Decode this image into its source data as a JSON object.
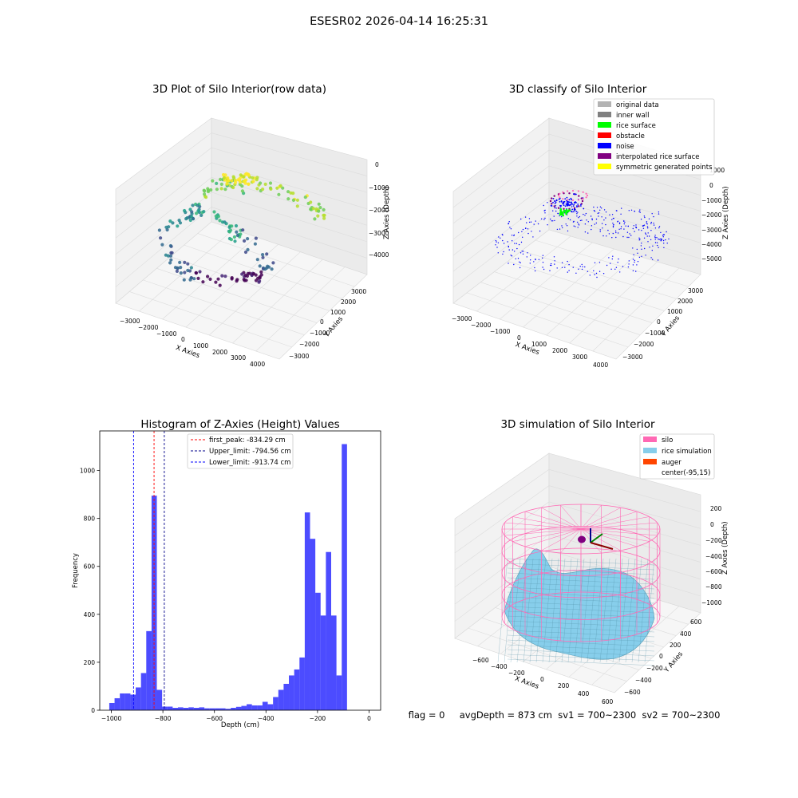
{
  "figure": {
    "suptitle": "ESESR02 2026-04-14 16:25:31",
    "footer": "flag = 0     avgDepth = 873 cm  sv1 = 700~2300  sv2 = 700~2300"
  },
  "chart_data": [
    {
      "type": "scatter",
      "projection": "3d",
      "title": "3D Plot of Silo Interior(row data)",
      "xlabel": "X Axies",
      "ylabel": "Y Axies",
      "zlabel": "Z Axies (Depth)",
      "xticks": [
        "−3000",
        "−2000",
        "−1000",
        "0",
        "1000",
        "2000",
        "3000",
        "4000"
      ],
      "yticks": [
        "3000",
        "2000",
        "1000",
        "0",
        "−1000",
        "−2000",
        "−3000"
      ],
      "zticks": [
        "0",
        "−1000",
        "−2000",
        "−3000",
        "−4000"
      ],
      "colormap": "viridis",
      "grid": true
    },
    {
      "type": "scatter",
      "projection": "3d",
      "title": "3D classify of Silo Interior",
      "xlabel": "X Axies",
      "ylabel": "Y Axies",
      "zlabel": "Z Axies (Depth)",
      "xticks": [
        "−3000",
        "−2000",
        "−1000",
        "0",
        "1000",
        "2000",
        "3000",
        "4000"
      ],
      "yticks": [
        "3000",
        "2000",
        "1000",
        "0",
        "−1000",
        "−2000",
        "−3000"
      ],
      "zticks": [
        "1000",
        "0",
        "−1000",
        "−2000",
        "−3000",
        "−4000",
        "−5000"
      ],
      "legend": [
        {
          "label": "original data",
          "color": "#b3b3b3"
        },
        {
          "label": "inner wall",
          "color": "#808080"
        },
        {
          "label": "rice surface",
          "color": "#00ff00"
        },
        {
          "label": "obstacle",
          "color": "#ff0000"
        },
        {
          "label": "noise",
          "color": "#0000ff"
        },
        {
          "label": "interpolated rice surface",
          "color": "#800080"
        },
        {
          "label": "symmetric generated points",
          "color": "#ffff00"
        }
      ],
      "legend_position": "top-right",
      "grid": true
    },
    {
      "type": "bar",
      "title": "Histogram of Z-Axies (Height) Values",
      "xlabel": "Depth (cm)",
      "ylabel": "Frequency",
      "xlim": [
        -1045,
        45
      ],
      "ylim": [
        0,
        1165
      ],
      "xticks": [
        -1000,
        -800,
        -600,
        -400,
        -200,
        0
      ],
      "xtick_labels": [
        "−1000",
        "−800",
        "−600",
        "−400",
        "−200",
        "0"
      ],
      "yticks": [
        0,
        200,
        400,
        600,
        800,
        1000
      ],
      "bin_width": 20.5,
      "bin_start": -1008,
      "values": [
        30,
        50,
        70,
        70,
        65,
        95,
        155,
        330,
        895,
        85,
        15,
        15,
        10,
        12,
        10,
        12,
        10,
        12,
        8,
        8,
        8,
        8,
        6,
        10,
        14,
        18,
        25,
        20,
        20,
        35,
        25,
        55,
        85,
        110,
        145,
        170,
        220,
        825,
        715,
        490,
        395,
        660,
        395,
        145,
        1110
      ],
      "bar_color": "#0000ff",
      "vlines": [
        {
          "label": "first_peak: -834.29 cm",
          "x": -834.29,
          "color": "#ff0000"
        },
        {
          "label": "Upper_limit: -794.56 cm",
          "x": -794.56,
          "color": "#00008b"
        },
        {
          "label": "Lower_limit: -913.74 cm",
          "x": -913.74,
          "color": "#0000ff"
        }
      ],
      "legend_position": "top-center"
    },
    {
      "type": "surface",
      "projection": "3d",
      "title": "3D simulation of Silo Interior",
      "xlabel": "X Axies",
      "ylabel": "Y Axies",
      "zlabel": "Z Axies (Depth)",
      "xticks": [
        "−600",
        "−400",
        "−200",
        "0",
        "200",
        "400",
        "600"
      ],
      "yticks": [
        "600",
        "400",
        "200",
        "0",
        "−200",
        "−400",
        "−600"
      ],
      "zticks": [
        "200",
        "0",
        "−200",
        "−400",
        "−600",
        "−800",
        "−1000"
      ],
      "legend": [
        {
          "label": "silo",
          "color": "#ff69b4"
        },
        {
          "label": "rice simulation",
          "color": "#87ceeb"
        },
        {
          "label": "auger",
          "color": "#ff4500"
        },
        {
          "label": "center(-95,15)",
          "color": ""
        }
      ],
      "legend_position": "top-right",
      "grid": true
    }
  ]
}
